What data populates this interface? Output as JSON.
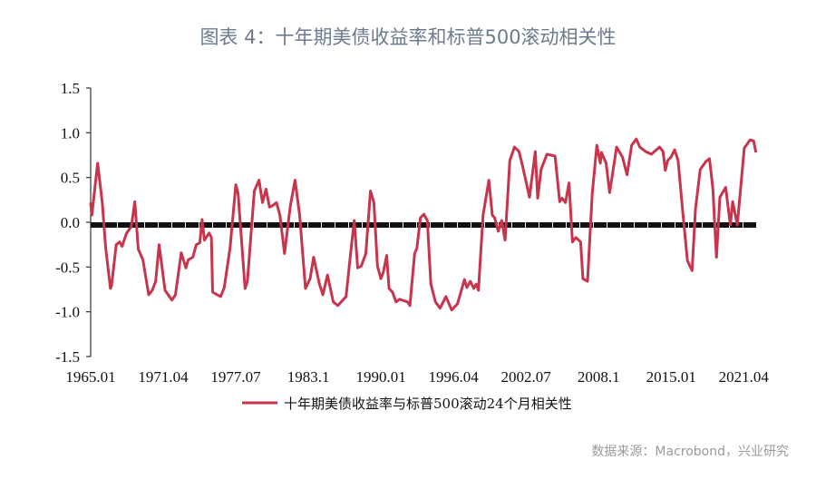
{
  "title": "图表 4：十年期美债收益率和标普500滚动相关性",
  "source": "数据来源：Macrobond，兴业研究",
  "colors": {
    "series": "#c8344b",
    "zero_line": "#111111",
    "title": "#6d7b8e",
    "axis": "#333333"
  },
  "chart_data": {
    "type": "line",
    "title": "图表 4：十年期美债收益率和标普500滚动相关性",
    "xlabel": "",
    "ylabel": "",
    "xlim": [
      1965.0,
      2022.4
    ],
    "ylim": [
      -1.5,
      1.5
    ],
    "grid": false,
    "legend_position": "bottom",
    "y_ticks": [
      {
        "value": 1.5,
        "label": "1.5"
      },
      {
        "value": 1.0,
        "label": "1.0"
      },
      {
        "value": 0.5,
        "label": "0.5"
      },
      {
        "value": 0.0,
        "label": "0.0"
      },
      {
        "value": -0.5,
        "label": "-0.5"
      },
      {
        "value": -1.0,
        "label": "-1.0"
      },
      {
        "value": -1.5,
        "label": "-1.5"
      }
    ],
    "x_ticks": [
      {
        "value": 1965.0,
        "label": "1965.01"
      },
      {
        "value": 1971.25,
        "label": "1971.04"
      },
      {
        "value": 1977.5,
        "label": "1977.07"
      },
      {
        "value": 1983.75,
        "label": "1983.1"
      },
      {
        "value": 1990.0,
        "label": "1990.01"
      },
      {
        "value": 1996.25,
        "label": "1996.04"
      },
      {
        "value": 2002.5,
        "label": "2002.07"
      },
      {
        "value": 2008.75,
        "label": "2008.1"
      },
      {
        "value": 2015.0,
        "label": "2015.01"
      },
      {
        "value": 2021.25,
        "label": "2021.04"
      }
    ],
    "reference_line": 0.0,
    "series": [
      {
        "name": "十年期美债收益率与标普500滚动24个月相关性",
        "x": [
          1965.0,
          1965.1,
          1965.6,
          1966.0,
          1966.3,
          1966.7,
          1966.8,
          1967.2,
          1967.5,
          1967.7,
          1968.1,
          1968.5,
          1968.8,
          1969.1,
          1969.5,
          1970.0,
          1970.3,
          1970.6,
          1970.9,
          1971.4,
          1972.0,
          1972.3,
          1972.8,
          1973.2,
          1973.4,
          1973.8,
          1974.1,
          1974.4,
          1974.6,
          1974.8,
          1975.2,
          1975.4,
          1975.5,
          1975.9,
          1976.2,
          1976.5,
          1977.0,
          1977.5,
          1977.7,
          1978.3,
          1978.5,
          1979.1,
          1979.5,
          1979.8,
          1980.1,
          1980.4,
          1980.6,
          1981.0,
          1981.3,
          1981.7,
          1982.2,
          1982.6,
          1983.0,
          1983.5,
          1983.9,
          1984.2,
          1984.7,
          1985.0,
          1985.4,
          1985.9,
          1986.3,
          1987.0,
          1987.3,
          1987.7,
          1988.0,
          1988.3,
          1988.7,
          1989.1,
          1989.4,
          1989.7,
          1990.0,
          1990.2,
          1990.5,
          1990.7,
          1991.0,
          1991.3,
          1991.6,
          1992.3,
          1992.5,
          1992.9,
          1993.1,
          1993.4,
          1993.7,
          1994.0,
          1994.3,
          1994.7,
          1995.1,
          1995.6,
          1996.1,
          1996.6,
          1997.2,
          1997.4,
          1997.7,
          1998.0,
          1998.2,
          1998.4,
          1998.8,
          1999.3,
          1999.6,
          1999.8,
          2000.1,
          2000.4,
          2000.7,
          2001.1,
          2001.5,
          2001.9,
          2002.2,
          2002.8,
          2003.3,
          2003.5,
          2003.8,
          2004.3,
          2005.0,
          2005.4,
          2005.6,
          2005.9,
          2006.2,
          2006.5,
          2006.8,
          2007.2,
          2007.4,
          2007.8,
          2008.2,
          2008.6,
          2008.9,
          2009.0,
          2009.4,
          2009.7,
          2010.3,
          2010.8,
          2011.2,
          2011.6,
          2012.0,
          2012.3,
          2012.8,
          2013.3,
          2014.0,
          2014.3,
          2014.5,
          2014.7,
          2015.0,
          2015.3,
          2015.6,
          2016.0,
          2016.4,
          2016.8,
          2017.1,
          2017.5,
          2018.0,
          2018.3,
          2018.6,
          2018.9,
          2019.2,
          2019.7,
          2020.1,
          2020.3,
          2020.7,
          2021.3,
          2021.8,
          2022.1,
          2022.3
        ],
        "values": [
          0.22,
          0.08,
          0.66,
          0.22,
          -0.29,
          -0.74,
          -0.71,
          -0.25,
          -0.22,
          -0.27,
          -0.12,
          -0.05,
          0.23,
          -0.3,
          -0.42,
          -0.81,
          -0.76,
          -0.66,
          -0.25,
          -0.76,
          -0.87,
          -0.81,
          -0.34,
          -0.51,
          -0.42,
          -0.39,
          -0.25,
          -0.23,
          0.03,
          -0.2,
          -0.12,
          -0.17,
          -0.78,
          -0.81,
          -0.83,
          -0.73,
          -0.29,
          0.42,
          0.32,
          -0.74,
          -0.66,
          0.35,
          0.47,
          0.22,
          0.37,
          0.17,
          0.18,
          0.22,
          0.08,
          -0.35,
          0.18,
          0.47,
          0.08,
          -0.74,
          -0.63,
          -0.39,
          -0.69,
          -0.81,
          -0.59,
          -0.89,
          -0.93,
          -0.83,
          -0.46,
          0.02,
          -0.51,
          -0.49,
          -0.35,
          0.35,
          0.22,
          -0.49,
          -0.63,
          -0.56,
          -0.37,
          -0.74,
          -0.78,
          -0.89,
          -0.86,
          -0.89,
          -0.93,
          -0.35,
          -0.29,
          0.05,
          0.09,
          0.02,
          -0.69,
          -0.89,
          -0.96,
          -0.83,
          -0.98,
          -0.91,
          -0.64,
          -0.73,
          -0.66,
          -0.74,
          -0.69,
          -0.76,
          0.08,
          0.47,
          0.08,
          0.05,
          -0.1,
          0.02,
          -0.2,
          0.69,
          0.84,
          0.79,
          0.63,
          0.28,
          0.79,
          0.27,
          0.59,
          0.76,
          0.74,
          0.23,
          0.27,
          0.22,
          0.44,
          -0.22,
          -0.17,
          -0.22,
          -0.63,
          -0.66,
          0.32,
          0.86,
          0.66,
          0.78,
          0.66,
          0.33,
          0.84,
          0.73,
          0.53,
          0.86,
          0.93,
          0.84,
          0.79,
          0.76,
          0.84,
          0.79,
          0.58,
          0.69,
          0.73,
          0.81,
          0.69,
          0.12,
          -0.43,
          -0.54,
          0.15,
          0.59,
          0.68,
          0.71,
          0.37,
          -0.39,
          0.28,
          0.39,
          -0.03,
          0.23,
          -0.03,
          0.83,
          0.92,
          0.91,
          0.78
        ]
      }
    ]
  }
}
